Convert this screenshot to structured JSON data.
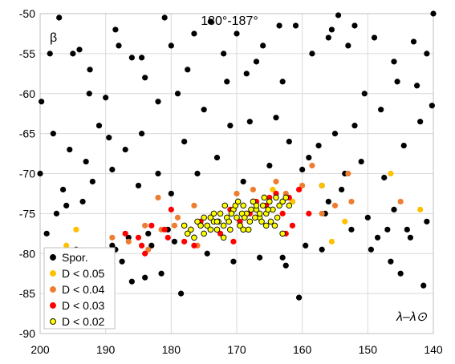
{
  "chart_data": {
    "type": "scatter",
    "title": "180°-187°",
    "ylabel": "β",
    "xlabel": "λ–λ⊙",
    "xlim": [
      200,
      140
    ],
    "ylim": [
      -90,
      -50
    ],
    "x_ticks": [
      200,
      190,
      180,
      170,
      160,
      150,
      140
    ],
    "y_ticks": [
      -50,
      -55,
      -60,
      -65,
      -70,
      -75,
      -80,
      -85,
      -90
    ],
    "grid": true,
    "legend_position": "bottom-left",
    "series": [
      {
        "name": "Spor.",
        "color": "#000000",
        "x": [
          199.8,
          197.1,
          195.0,
          194.0,
          192.4,
          190.0,
          188.5,
          186.0,
          184.0,
          181.0,
          179.0,
          177.5,
          174.0,
          172.0,
          170.0,
          168.5,
          166.0,
          163.0,
          161.0,
          158.5,
          156.0,
          154.5,
          153.0,
          149.0,
          146.0,
          143.0,
          141.0,
          140.0,
          140.2,
          142.5,
          145.5,
          148.0,
          150.5,
          152.0,
          155.0,
          157.5,
          159.0,
          162.0,
          164.0,
          168.0,
          171.0,
          175.0,
          178.0,
          182.0,
          184.5,
          187.0,
          189.5,
          191.0,
          193.0,
          195.5,
          198.0,
          200.0,
          196.5,
          192.0,
          189.0,
          185.0,
          182.0,
          180.0,
          176.0,
          173.0,
          169.0,
          165.0,
          160.0,
          157.0,
          153.5,
          151.0,
          147.5,
          144.5,
          142.0,
          141.0,
          143.5,
          146.5,
          149.5,
          152.5,
          156.5,
          159.5,
          161.5,
          166.5,
          170.5,
          174.5,
          179.5,
          183.5,
          186.5,
          188.5,
          190.5,
          194.5,
          197.5,
          199.0,
          196.0,
          193.5,
          187.5,
          184.0,
          181.5,
          178.5,
          156.0,
          150.0,
          145.0,
          141.5,
          160.5,
          157.0,
          154.0,
          148.5,
          146.0,
          144.0,
          162.5,
          186.0,
          183.0,
          180.5,
          189.0,
          152.0,
          155.5,
          163.5,
          167.0,
          171.5,
          176.5,
          180.0,
          184.5,
          188.0,
          192.5,
          198.5,
          163.0,
          147.0
        ],
        "y": [
          -61.0,
          -50.5,
          -55.0,
          -54.5,
          -57.0,
          -60.5,
          -52.0,
          -55.5,
          -58.0,
          -50.5,
          -60.0,
          -57.0,
          -51.0,
          -55.0,
          -52.5,
          -57.5,
          -54.0,
          -58.5,
          -51.5,
          -55.0,
          -53.0,
          -50.2,
          -54.0,
          -53.0,
          -56.0,
          -53.5,
          -55.0,
          -50.0,
          -61.5,
          -59.0,
          -58.5,
          -62.0,
          -60.0,
          -64.0,
          -65.0,
          -66.5,
          -68.0,
          -66.0,
          -63.0,
          -63.5,
          -64.0,
          -62.0,
          -66.0,
          -61.0,
          -65.0,
          -67.0,
          -65.5,
          -64.0,
          -68.5,
          -67.0,
          -65.0,
          -70.0,
          -72.0,
          -71.0,
          -69.5,
          -71.5,
          -70.0,
          -72.5,
          -70.0,
          -68.0,
          -71.0,
          -69.0,
          -69.5,
          -71.5,
          -70.0,
          -68.5,
          -70.5,
          -66.5,
          -63.5,
          -76.0,
          -78.0,
          -81.0,
          -79.5,
          -77.0,
          -75.0,
          -79.0,
          -73.5,
          -80.5,
          -81.0,
          -80.0,
          -78.5,
          -77.5,
          -78.0,
          -79.5,
          -82.0,
          -79.5,
          -75.0,
          -77.5,
          -74.0,
          -73.5,
          -81.0,
          -83.0,
          -82.5,
          -85.0,
          -73.5,
          -75.5,
          -82.5,
          -84.0,
          -85.5,
          -79.5,
          -72.0,
          -78.0,
          -74.5,
          -77.0,
          -81.5,
          -83.5,
          -79.0,
          -77.0,
          -79.0,
          -51.5,
          -52.0,
          -51.5,
          -56.0,
          -58.5,
          -52.5,
          -54.0,
          -55.5,
          -54.0,
          -60.0,
          -55.0,
          -80.5,
          -77.0
        ]
      },
      {
        "name": "D < 0.05",
        "color": "#ffc000",
        "x": [
          196.0,
          194.5,
          153.5,
          155.5,
          146.5,
          142.0,
          164.5,
          161.5,
          157.0
        ],
        "y": [
          -79.0,
          -77.0,
          -76.0,
          -78.5,
          -70.0,
          -74.5,
          -72.0,
          -73.5,
          -71.5
        ]
      },
      {
        "name": "D < 0.04",
        "color": "#ed7d31",
        "x": [
          189.0,
          186.5,
          184.0,
          182.0,
          181.5,
          179.0,
          176.5,
          176.0,
          160.0,
          157.0,
          155.0,
          152.5,
          158.5,
          170.0,
          164.0,
          162.5,
          167.5,
          145.0,
          153.0,
          179.5,
          183.5
        ],
        "y": [
          -78.0,
          -78.5,
          -76.5,
          -73.0,
          -77.0,
          -75.5,
          -74.0,
          -79.0,
          -71.5,
          -75.0,
          -74.0,
          -73.5,
          -69.0,
          -72.5,
          -71.0,
          -72.5,
          -72.0,
          -73.5,
          -70.0,
          -76.5,
          -79.5
        ],
        "note": ""
      },
      {
        "name": "D < 0.03",
        "color": "#ff0000",
        "x": [
          187.0,
          185.0,
          184.5,
          183.0,
          181.0,
          180.0,
          178.0,
          177.0,
          175.5,
          174.0,
          172.5,
          171.0,
          169.5,
          168.0,
          167.0,
          165.5,
          164.0,
          163.0,
          162.0,
          161.5,
          160.5,
          159.0,
          162.5,
          165.0,
          176.5,
          170.5,
          184.0,
          180.5
        ],
        "y": [
          -77.5,
          -78.0,
          -79.0,
          -76.5,
          -77.0,
          -74.5,
          -78.5,
          -77.0,
          -76.0,
          -75.5,
          -77.5,
          -74.5,
          -76.0,
          -75.0,
          -73.5,
          -74.0,
          -72.5,
          -75.0,
          -73.0,
          -76.5,
          -72.0,
          -75.0,
          -77.5,
          -73.0,
          -79.0,
          -78.5,
          -80.0,
          -78.0
        ]
      },
      {
        "name": "D < 0.02",
        "color": "#ffff00",
        "x": [
          178.0,
          177.0,
          176.0,
          175.0,
          174.5,
          174.0,
          173.5,
          173.0,
          172.5,
          172.0,
          171.5,
          171.0,
          170.5,
          170.0,
          169.5,
          169.0,
          168.5,
          168.0,
          167.5,
          167.0,
          166.5,
          166.0,
          165.5,
          165.0,
          164.5,
          164.0,
          163.5,
          163.0,
          162.5,
          162.0,
          176.5,
          175.5,
          174.0,
          172.8,
          171.2,
          170.2,
          169.2,
          168.2,
          167.2,
          166.2,
          165.2,
          164.2,
          173.5,
          171.8,
          169.8,
          167.8,
          165.8,
          163.8,
          175.0,
          172.0,
          168.8,
          166.5,
          164.8,
          170.8,
          167.0,
          163.0,
          177.5,
          173.0,
          169.0,
          165.5
        ],
        "y": [
          -76.5,
          -77.0,
          -76.0,
          -77.5,
          -76.5,
          -75.5,
          -76.0,
          -77.0,
          -75.0,
          -76.5,
          -75.5,
          -77.0,
          -74.5,
          -75.5,
          -76.5,
          -74.0,
          -75.0,
          -76.0,
          -73.5,
          -74.5,
          -75.5,
          -74.0,
          -75.0,
          -73.5,
          -74.5,
          -73.0,
          -74.0,
          -73.5,
          -73.0,
          -74.0,
          -78.0,
          -76.5,
          -77.0,
          -76.0,
          -76.0,
          -74.0,
          -75.0,
          -77.0,
          -75.5,
          -76.0,
          -74.5,
          -76.5,
          -75.0,
          -74.0,
          -73.5,
          -74.5,
          -73.0,
          -75.5,
          -75.5,
          -78.0,
          -75.5,
          -75.0,
          -76.0,
          -75.0,
          -74.0,
          -77.5,
          -77.5,
          -76.0,
          -77.0,
          -76.5
        ]
      }
    ]
  }
}
